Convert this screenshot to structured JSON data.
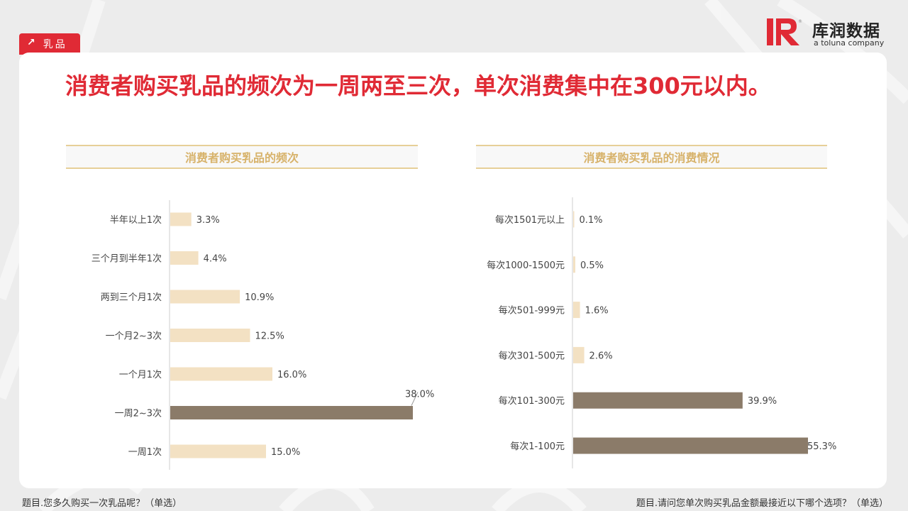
{
  "tag": {
    "label": "乳品",
    "icon": "arrow-up-right-icon"
  },
  "logo": {
    "name": "库润数据",
    "sub": "a toluna company"
  },
  "headline": "消费者购买乳品的频次为一周两至三次，单次消费集中在300元以内。",
  "footnotes": {
    "left": "题目.您多久购买一次乳品呢？（单选）",
    "right": "题目.请问您单次购买乳品金额最接近以下哪个选项？（单选）"
  },
  "colors": {
    "accent": "#e02a35",
    "highlight_bar": "#8b7b69",
    "bar": "#f3e1c3",
    "panel_title": "#d7b26a"
  },
  "chart_data": [
    {
      "type": "bar",
      "orientation": "horizontal",
      "title": "消费者购买乳品的频次",
      "categories": [
        "半年以上1次",
        "三个月到半年1次",
        "两到三个月1次",
        "一个月2~3次",
        "一个月1次",
        "一周2~3次",
        "一周1次"
      ],
      "values": [
        3.3,
        4.4,
        10.9,
        12.5,
        16.0,
        38.0,
        15.0
      ],
      "labels": [
        "3.3%",
        "4.4%",
        "10.9%",
        "12.5%",
        "16.0%",
        "38.0%",
        "15.0%"
      ],
      "highlight": [
        5
      ],
      "xlim": [
        0,
        38
      ]
    },
    {
      "type": "bar",
      "orientation": "horizontal",
      "title": "消费者购买乳品的消费情况",
      "categories": [
        "每次1501元以上",
        "每次1000-1500元",
        "每次501-999元",
        "每次301-500元",
        "每次101-300元",
        "每次1-100元"
      ],
      "values": [
        0.1,
        0.5,
        1.6,
        2.6,
        39.9,
        55.3
      ],
      "labels": [
        "0.1%",
        "0.5%",
        "1.6%",
        "2.6%",
        "39.9%",
        "55.3%"
      ],
      "highlight": [
        4,
        5
      ],
      "xlim": [
        0,
        55.3
      ]
    }
  ]
}
